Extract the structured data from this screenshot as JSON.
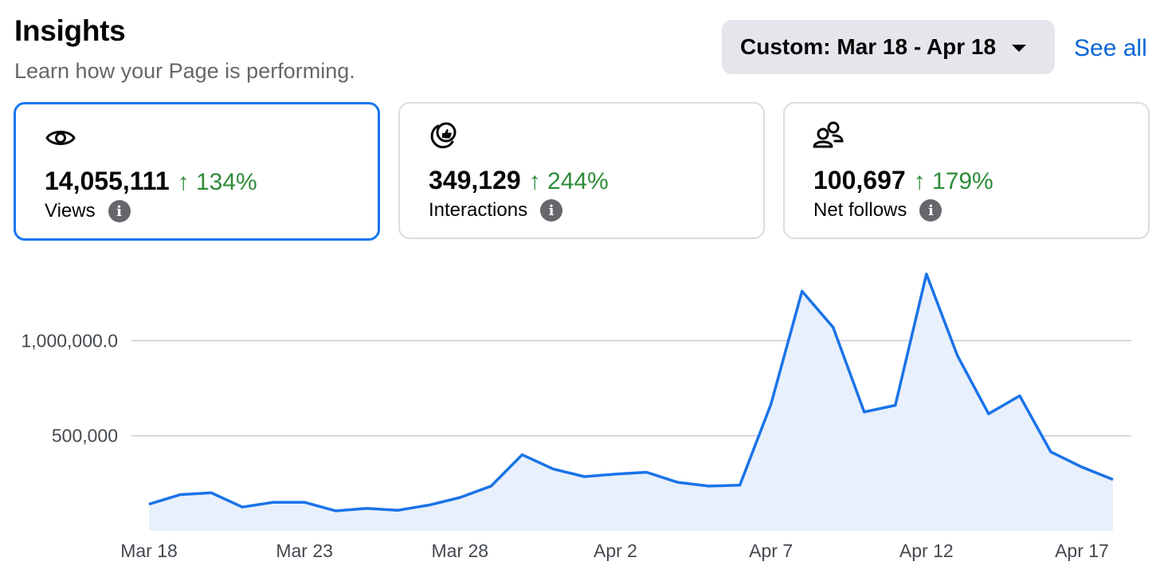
{
  "header": {
    "title": "Insights",
    "subtitle": "Learn how your Page is performing.",
    "date_range_label": "Custom: Mar 18 - Apr 18",
    "see_all_label": "See all"
  },
  "cards": [
    {
      "icon": "eye-icon",
      "value": "14,055,111",
      "delta": "↑ 134%",
      "label": "Views",
      "selected": true
    },
    {
      "icon": "interactions-icon",
      "value": "349,129",
      "delta": "↑ 244%",
      "label": "Interactions",
      "selected": false
    },
    {
      "icon": "people-icon",
      "value": "100,697",
      "delta": "↑ 179%",
      "label": "Net follows",
      "selected": false
    }
  ],
  "colors": {
    "accent": "#1877f2",
    "positive": "#2e8b3a",
    "line": "#1a73e8",
    "fill": "#e8f0fc"
  },
  "chart_data": {
    "type": "area",
    "x": [
      "Mar 18",
      "Mar 19",
      "Mar 20",
      "Mar 21",
      "Mar 22",
      "Mar 23",
      "Mar 24",
      "Mar 25",
      "Mar 26",
      "Mar 27",
      "Mar 28",
      "Mar 29",
      "Mar 30",
      "Mar 31",
      "Apr 1",
      "Apr 2",
      "Apr 3",
      "Apr 4",
      "Apr 5",
      "Apr 6",
      "Apr 7",
      "Apr 8",
      "Apr 9",
      "Apr 10",
      "Apr 11",
      "Apr 12",
      "Apr 13",
      "Apr 14",
      "Apr 15",
      "Apr 16",
      "Apr 17",
      "Apr 18"
    ],
    "values": [
      140000,
      190000,
      200000,
      125000,
      150000,
      150000,
      105000,
      118000,
      108000,
      135000,
      175000,
      235000,
      400000,
      325000,
      285000,
      298000,
      308000,
      255000,
      235000,
      240000,
      665000,
      1260000,
      1070000,
      625000,
      660000,
      1350000,
      920000,
      615000,
      710000,
      415000,
      335000,
      270000
    ],
    "y_ticks": [
      500000,
      1000000
    ],
    "y_tick_labels": [
      "500,000",
      "1,000,000.0"
    ],
    "x_tick_labels": [
      "Mar 18",
      "Mar 23",
      "Mar 28",
      "Apr 2",
      "Apr 7",
      "Apr 12",
      "Apr 17"
    ],
    "ylim": [
      0,
      1450000
    ],
    "grid": true
  }
}
